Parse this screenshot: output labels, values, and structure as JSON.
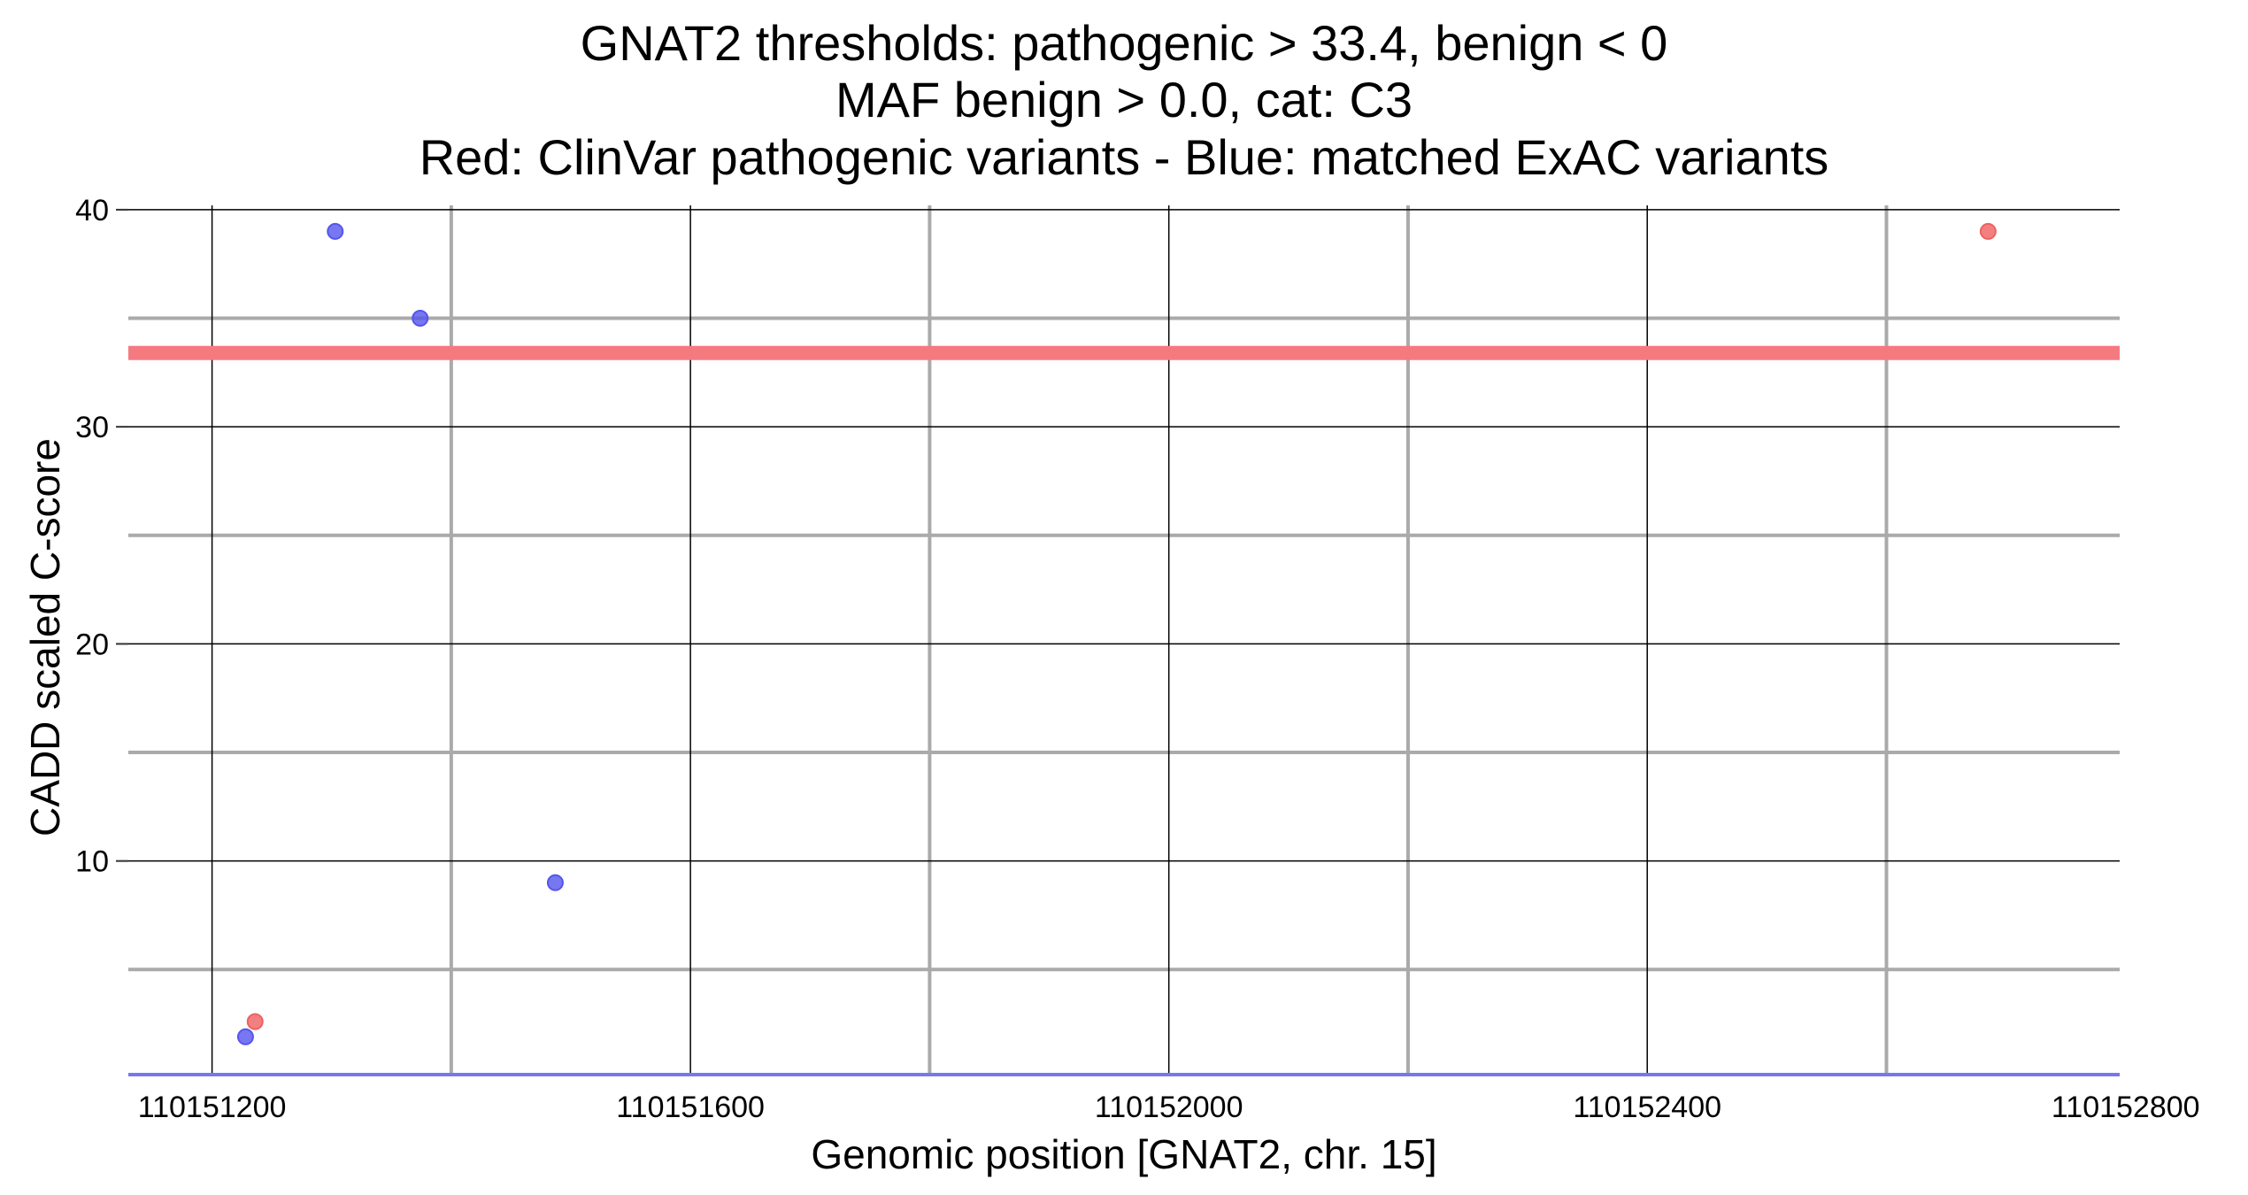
{
  "chart_data": {
    "type": "scatter",
    "title_lines": [
      "GNAT2 thresholds: pathogenic > 33.4, benign < 0",
      "MAF benign > 0.0, cat: C3",
      "Red: ClinVar pathogenic variants - Blue: matched ExAC variants"
    ],
    "xlabel": "Genomic position [GNAT2, chr. 15]",
    "ylabel": "CADD scaled C-score",
    "xlim": [
      110151130,
      110152795
    ],
    "ylim": [
      0.2,
      40.2
    ],
    "x_ticks": [
      110151200,
      110151600,
      110152000,
      110152400,
      110152800
    ],
    "x_tick_labels": [
      "110151200",
      "110151600",
      "110152000",
      "110152400",
      "110152800"
    ],
    "x_minor_grid": [
      110151400,
      110151800,
      110152200,
      110152600
    ],
    "y_ticks": [
      10,
      20,
      30,
      40
    ],
    "y_tick_labels": [
      "10",
      "20",
      "30",
      "40"
    ],
    "y_minor_grid": [
      5,
      15,
      25,
      35
    ],
    "grid": true,
    "legend": "none",
    "thresholds": {
      "pathogenic": 33.4,
      "benign": 0,
      "pathogenic_color": "#f47a80",
      "benign_color": "#7777ee"
    },
    "series": [
      {
        "color": "#f06060",
        "points": [
          {
            "x": 110151236,
            "y": 2.6
          },
          {
            "x": 110152685,
            "y": 39.0
          }
        ]
      },
      {
        "color": "#5555ee",
        "points": [
          {
            "x": 110151228,
            "y": 1.9
          },
          {
            "x": 110151303,
            "y": 39.0
          },
          {
            "x": 110151374,
            "y": 35.0
          },
          {
            "x": 110151487,
            "y": 9.0
          }
        ]
      }
    ]
  }
}
